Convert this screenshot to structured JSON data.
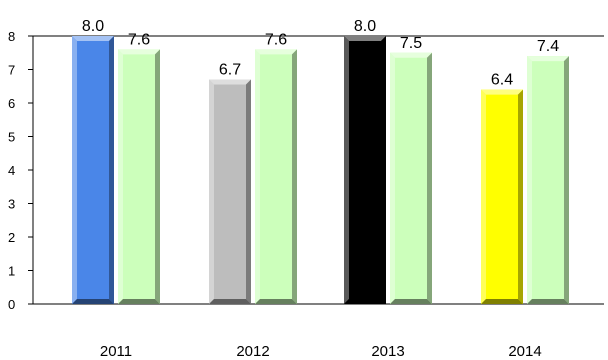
{
  "chart_data": {
    "type": "bar",
    "title": "",
    "xlabel": "",
    "ylabel": "",
    "categories": [
      "2011",
      "2012",
      "2013",
      "2014"
    ],
    "series": [
      {
        "values": [
          8.0,
          6.7,
          8.0,
          6.4
        ],
        "labels": [
          "8.0",
          "6.7",
          "8.0",
          "6.4"
        ],
        "colors": [
          "#4a86e8",
          "#bdbdbd",
          "#000000",
          "#ffff00"
        ]
      },
      {
        "values": [
          7.6,
          7.6,
          7.5,
          7.4
        ],
        "labels": [
          "7.6",
          "7.6",
          "7.5",
          "7.4"
        ],
        "colors": [
          "#ccffbb",
          "#ccffbb",
          "#ccffbb",
          "#ccffbb"
        ]
      }
    ],
    "ylim": [
      0,
      8
    ],
    "yticks": [
      "0",
      "1",
      "2",
      "3",
      "4",
      "5",
      "6",
      "7",
      "8"
    ],
    "grid": false,
    "legend": "none",
    "style": "3d-bevel"
  }
}
